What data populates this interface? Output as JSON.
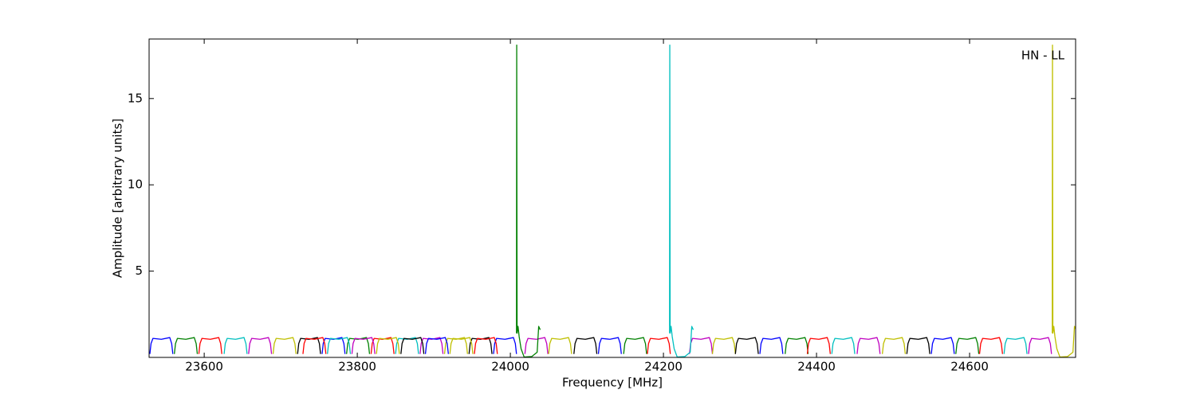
{
  "chart_data": {
    "type": "line",
    "xlabel": "Frequency [MHz]",
    "ylabel": "Amplitude [arbitrary units]",
    "annotation": "HN - LL",
    "xlim": [
      23528,
      24738.5
    ],
    "ylim": [
      0,
      18.45
    ],
    "xticks": [
      23600,
      23800,
      24000,
      24200,
      24400,
      24600
    ],
    "yticks": [
      5,
      10,
      15
    ],
    "series": [
      {
        "color": "#0000ff",
        "x": [
          23529,
          23530.5,
          23533,
          23544,
          23555,
          23557.5,
          23559
        ],
        "values": [
          0.2,
          0.8,
          1.1,
          1.05,
          1.15,
          0.8,
          0.2
        ]
      },
      {
        "color": "#008000",
        "x": [
          23561,
          23562.5,
          23565,
          23576,
          23587,
          23589.5,
          23591
        ],
        "values": [
          0.2,
          0.8,
          1.1,
          1.05,
          1.15,
          0.8,
          0.2
        ]
      },
      {
        "color": "#ff0000",
        "x": [
          23593,
          23594.5,
          23597,
          23608,
          23619,
          23621.5,
          23623
        ],
        "values": [
          0.2,
          0.8,
          1.1,
          1.05,
          1.15,
          0.8,
          0.2
        ]
      },
      {
        "color": "#00bfbf",
        "x": [
          23626,
          23627.5,
          23630,
          23641,
          23652,
          23654.5,
          23656
        ],
        "values": [
          0.2,
          0.8,
          1.1,
          1.05,
          1.15,
          0.8,
          0.2
        ]
      },
      {
        "color": "#bf00bf",
        "x": [
          23658,
          23659.5,
          23662,
          23673,
          23684,
          23686.5,
          23688
        ],
        "values": [
          0.2,
          0.8,
          1.1,
          1.05,
          1.15,
          0.8,
          0.2
        ]
      },
      {
        "color": "#bfbf00",
        "x": [
          23690,
          23691.5,
          23694,
          23705,
          23716,
          23718.5,
          23720
        ],
        "values": [
          0.2,
          0.8,
          1.1,
          1.05,
          1.15,
          0.8,
          0.2
        ]
      },
      {
        "color": "#000000",
        "x": [
          23722,
          23723.5,
          23726,
          23737,
          23748,
          23750.5,
          23752
        ],
        "values": [
          0.2,
          0.8,
          1.1,
          1.05,
          1.15,
          0.8,
          0.2
        ]
      },
      {
        "color": "#0000ff",
        "x": [
          23754,
          23755.5,
          23758,
          23769,
          23780,
          23782.5,
          23784
        ],
        "values": [
          0.2,
          0.8,
          1.1,
          1.05,
          1.15,
          0.8,
          0.2
        ]
      },
      {
        "color": "#008000",
        "x": [
          23786,
          23787.5,
          23790,
          23801,
          23812,
          23814.5,
          23816
        ],
        "values": [
          0.2,
          0.8,
          1.1,
          1.05,
          1.15,
          0.8,
          0.2
        ]
      },
      {
        "color": "#ff0000",
        "x": [
          23818,
          23819.5,
          23822,
          23833,
          23844,
          23846.5,
          23848
        ],
        "values": [
          0.2,
          0.8,
          1.1,
          1.05,
          1.15,
          0.8,
          0.2
        ]
      },
      {
        "color": "#00bfbf",
        "x": [
          23850,
          23851.5,
          23854,
          23865,
          23876,
          23878.5,
          23880
        ],
        "values": [
          0.2,
          0.8,
          1.1,
          1.05,
          1.15,
          0.8,
          0.2
        ]
      },
      {
        "color": "#bf00bf",
        "x": [
          23882,
          23883.5,
          23886,
          23897,
          23908,
          23910.5,
          23912
        ],
        "values": [
          0.2,
          0.8,
          1.1,
          1.05,
          1.15,
          0.8,
          0.2
        ]
      },
      {
        "color": "#bfbf00",
        "x": [
          23914,
          23915.5,
          23918,
          23929,
          23940,
          23942.5,
          23944
        ],
        "values": [
          0.2,
          0.8,
          1.1,
          1.05,
          1.15,
          0.8,
          0.2
        ]
      },
      {
        "color": "#000000",
        "x": [
          23946,
          23947.5,
          23950,
          23961,
          23972,
          23974.5,
          23976
        ],
        "values": [
          0.2,
          0.8,
          1.1,
          1.05,
          1.15,
          0.8,
          0.2
        ]
      },
      {
        "color": "#0000ff",
        "x": [
          23978,
          23979.5,
          23982,
          23993,
          24004,
          24006.5,
          24008
        ],
        "values": [
          0.2,
          0.8,
          1.1,
          1.05,
          1.15,
          0.8,
          0.2
        ]
      },
      {
        "color": "#ff0000",
        "x": [
          23729,
          23730.5,
          23733,
          23744,
          23755,
          23757.5,
          23759
        ],
        "values": [
          0.2,
          0.8,
          1.1,
          1.05,
          1.15,
          0.8,
          0.2
        ]
      },
      {
        "color": "#00bfbf",
        "x": [
          23761,
          23762.5,
          23765,
          23776,
          23787,
          23789.5,
          23791
        ],
        "values": [
          0.2,
          0.8,
          1.1,
          1.05,
          1.15,
          0.8,
          0.2
        ]
      },
      {
        "color": "#bf00bf",
        "x": [
          23793,
          23794.5,
          23797,
          23808,
          23819,
          23821.5,
          23823
        ],
        "values": [
          0.2,
          0.8,
          1.1,
          1.05,
          1.15,
          0.8,
          0.2
        ]
      },
      {
        "color": "#bfbf00",
        "x": [
          23825,
          23826.5,
          23829,
          23840,
          23851,
          23853.5,
          23855
        ],
        "values": [
          0.2,
          0.8,
          1.1,
          1.05,
          1.15,
          0.8,
          0.2
        ]
      },
      {
        "color": "#000000",
        "x": [
          23857,
          23858.5,
          23861,
          23872,
          23883,
          23885.5,
          23887
        ],
        "values": [
          0.2,
          0.8,
          1.1,
          1.05,
          1.15,
          0.8,
          0.2
        ]
      },
      {
        "color": "#0000ff",
        "x": [
          23889,
          23890.5,
          23893,
          23904,
          23915,
          23917.5,
          23919
        ],
        "values": [
          0.2,
          0.8,
          1.1,
          1.05,
          1.15,
          0.8,
          0.2
        ]
      },
      {
        "color": "#bfbf00",
        "x": [
          23921,
          23922.5,
          23925,
          23936,
          23947,
          23949.5,
          23951
        ],
        "values": [
          0.2,
          0.8,
          1.1,
          1.05,
          1.15,
          0.8,
          0.2
        ]
      },
      {
        "color": "#ff0000",
        "x": [
          23953,
          23954.5,
          23957,
          23968,
          23979,
          23981.5,
          23983
        ],
        "values": [
          0.2,
          0.8,
          1.1,
          1.05,
          1.15,
          0.8,
          0.2
        ]
      },
      {
        "color": "#bf00bf",
        "x": [
          24019,
          24020.5,
          24023,
          24034,
          24045,
          24047.5,
          24049
        ],
        "values": [
          0.2,
          0.8,
          1.1,
          1.05,
          1.15,
          0.8,
          0.2
        ]
      },
      {
        "color": "#008000",
        "x": [
          24008,
          24008.3,
          24008.8,
          24010,
          24011.5,
          24014,
          24018,
          24028,
          24035,
          24037,
          24039
        ],
        "values": [
          1.4,
          18.1,
          1.4,
          1.8,
          1.2,
          0.5,
          0.02,
          0.05,
          0.3,
          1.8,
          1.6
        ]
      },
      {
        "color": "#bfbf00",
        "x": [
          24050,
          24051.5,
          24054,
          24065,
          24076,
          24078.5,
          24080
        ],
        "values": [
          0.2,
          0.8,
          1.1,
          1.05,
          1.15,
          0.8,
          0.2
        ]
      },
      {
        "color": "#000000",
        "x": [
          24083,
          24084.5,
          24087,
          24098,
          24109,
          24111.5,
          24113
        ],
        "values": [
          0.2,
          0.8,
          1.1,
          1.05,
          1.15,
          0.8,
          0.2
        ]
      },
      {
        "color": "#0000ff",
        "x": [
          24115,
          24116.5,
          24119,
          24130,
          24141,
          24143.5,
          24145
        ],
        "values": [
          0.2,
          0.8,
          1.1,
          1.05,
          1.15,
          0.8,
          0.2
        ]
      },
      {
        "color": "#008000",
        "x": [
          24148,
          24149.5,
          24152,
          24163,
          24174,
          24176.5,
          24178
        ],
        "values": [
          0.2,
          0.8,
          1.1,
          1.05,
          1.15,
          0.8,
          0.2
        ]
      },
      {
        "color": "#ff0000",
        "x": [
          24179,
          24180.5,
          24183,
          24194,
          24205,
          24207.5,
          24209
        ],
        "values": [
          0.2,
          0.8,
          1.1,
          1.05,
          1.15,
          0.8,
          0.2
        ]
      },
      {
        "color": "#bf00bf",
        "x": [
          24234,
          24235.5,
          24238,
          24249,
          24260,
          24262.5,
          24264
        ],
        "values": [
          0.2,
          0.8,
          1.1,
          1.05,
          1.15,
          0.8,
          0.2
        ]
      },
      {
        "color": "#00bfbf",
        "x": [
          24208,
          24208.3,
          24208.8,
          24210,
          24211.5,
          24214,
          24218,
          24228,
          24235,
          24237,
          24239
        ],
        "values": [
          1.4,
          18.1,
          1.4,
          1.8,
          1.2,
          0.5,
          0.02,
          0.05,
          0.3,
          1.8,
          1.6
        ]
      },
      {
        "color": "#bfbf00",
        "x": [
          24264,
          24265.5,
          24268,
          24279,
          24290,
          24292.5,
          24294
        ],
        "values": [
          0.2,
          0.8,
          1.1,
          1.05,
          1.15,
          0.8,
          0.2
        ]
      },
      {
        "color": "#000000",
        "x": [
          24294,
          24295.5,
          24298,
          24309,
          24320,
          24322.5,
          24324
        ],
        "values": [
          0.2,
          0.8,
          1.1,
          1.05,
          1.15,
          0.8,
          0.2
        ]
      },
      {
        "color": "#0000ff",
        "x": [
          24326,
          24327.5,
          24330,
          24341,
          24352,
          24354.5,
          24356
        ],
        "values": [
          0.2,
          0.8,
          1.1,
          1.05,
          1.15,
          0.8,
          0.2
        ]
      },
      {
        "color": "#008000",
        "x": [
          24359,
          24360.5,
          24363,
          24374,
          24385,
          24387.5,
          24389
        ],
        "values": [
          0.2,
          0.8,
          1.1,
          1.05,
          1.15,
          0.8,
          0.2
        ]
      },
      {
        "color": "#ff0000",
        "x": [
          24388,
          24389.5,
          24392,
          24403,
          24414,
          24416.5,
          24418
        ],
        "values": [
          0.2,
          0.8,
          1.1,
          1.05,
          1.15,
          0.8,
          0.2
        ]
      },
      {
        "color": "#00bfbf",
        "x": [
          24420,
          24421.5,
          24424,
          24435,
          24446,
          24448.5,
          24450
        ],
        "values": [
          0.2,
          0.8,
          1.1,
          1.05,
          1.15,
          0.8,
          0.2
        ]
      },
      {
        "color": "#bf00bf",
        "x": [
          24453,
          24454.5,
          24457,
          24468,
          24479,
          24481.5,
          24483
        ],
        "values": [
          0.2,
          0.8,
          1.1,
          1.05,
          1.15,
          0.8,
          0.2
        ]
      },
      {
        "color": "#bfbf00",
        "x": [
          24486,
          24487.5,
          24490,
          24501,
          24512,
          24514.5,
          24516
        ],
        "values": [
          0.2,
          0.8,
          1.1,
          1.05,
          1.15,
          0.8,
          0.2
        ]
      },
      {
        "color": "#000000",
        "x": [
          24518,
          24519.5,
          24522,
          24533,
          24544,
          24546.5,
          24548
        ],
        "values": [
          0.2,
          0.8,
          1.1,
          1.05,
          1.15,
          0.8,
          0.2
        ]
      },
      {
        "color": "#0000ff",
        "x": [
          24550,
          24551.5,
          24554,
          24565,
          24576,
          24578.5,
          24580
        ],
        "values": [
          0.2,
          0.8,
          1.1,
          1.05,
          1.15,
          0.8,
          0.2
        ]
      },
      {
        "color": "#008000",
        "x": [
          24582,
          24583.5,
          24586,
          24597,
          24608,
          24610.5,
          24612
        ],
        "values": [
          0.2,
          0.8,
          1.1,
          1.05,
          1.15,
          0.8,
          0.2
        ]
      },
      {
        "color": "#ff0000",
        "x": [
          24613,
          24614.5,
          24617,
          24628,
          24639,
          24641.5,
          24643
        ],
        "values": [
          0.2,
          0.8,
          1.1,
          1.05,
          1.15,
          0.8,
          0.2
        ]
      },
      {
        "color": "#00bfbf",
        "x": [
          24645,
          24646.5,
          24649,
          24660,
          24671,
          24673.5,
          24675
        ],
        "values": [
          0.2,
          0.8,
          1.1,
          1.05,
          1.15,
          0.8,
          0.2
        ]
      },
      {
        "color": "#bf00bf",
        "x": [
          24677,
          24678.5,
          24681,
          24692,
          24703,
          24705.5,
          24707
        ],
        "values": [
          0.2,
          0.8,
          1.1,
          1.05,
          1.15,
          0.8,
          0.2
        ]
      },
      {
        "color": "#bfbf00",
        "x": [
          24708,
          24708.3,
          24708.8,
          24710,
          24711.5,
          24714,
          24718,
          24728,
          24735,
          24737,
          24739
        ],
        "values": [
          1.4,
          18.1,
          1.4,
          1.8,
          1.2,
          0.5,
          0.02,
          0.05,
          0.3,
          1.8,
          1.6
        ]
      }
    ]
  }
}
